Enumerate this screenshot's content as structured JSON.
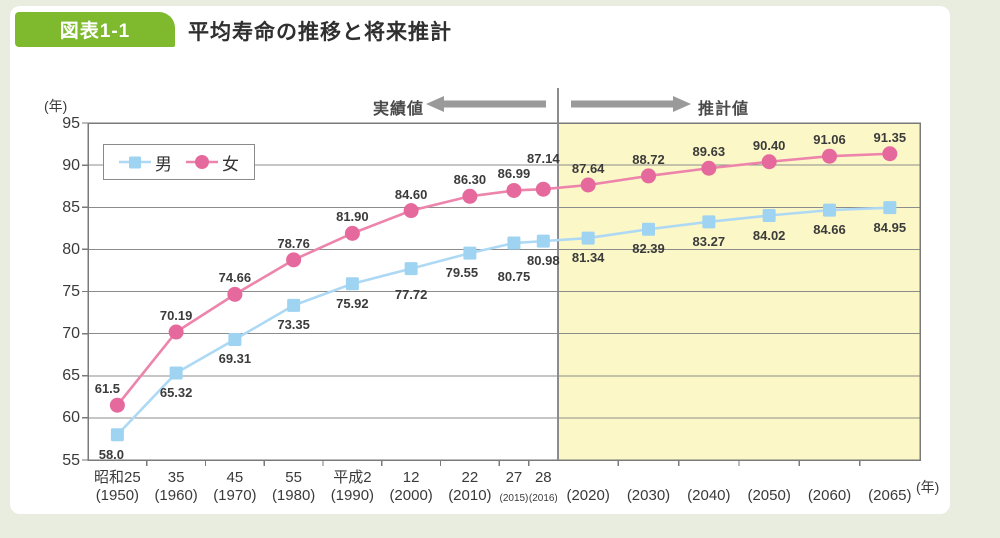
{
  "page": {
    "figure_label": "図表1-1",
    "title": "平均寿命の推移と将来推計",
    "colors": {
      "badge_green": "#7eb92e",
      "projection_bg": "#fbf7c6",
      "grid": "#8c8c8c",
      "plot_border": "#7a7a7a",
      "arrow": "#9a9a9a",
      "male": "#9fd3f2",
      "female": "#e5699c"
    }
  },
  "chart_data": {
    "type": "line",
    "title": "平均寿命の推移と将来推計",
    "ylabel_unit": "(年)",
    "xlabel_unit": "(年)",
    "ylim": [
      55,
      95
    ],
    "ytick_step": 5,
    "grid": "horizontal",
    "legend_position": "top-left",
    "actual_label": "実績値",
    "projection_label": "推計値",
    "projection_start_index": 9,
    "categories": [
      {
        "era": "昭和25",
        "year": "(1950)"
      },
      {
        "era": "35",
        "year": "(1960)"
      },
      {
        "era": "45",
        "year": "(1970)"
      },
      {
        "era": "55",
        "year": "(1980)"
      },
      {
        "era": "平成2",
        "year": "(1990)"
      },
      {
        "era": "12",
        "year": "(2000)"
      },
      {
        "era": "22",
        "year": "(2010)"
      },
      {
        "era": "27",
        "year": "(2015)",
        "narrow": true
      },
      {
        "era": "28",
        "year": "(2016)",
        "narrow": true
      },
      {
        "era": "",
        "year": "(2020)"
      },
      {
        "era": "",
        "year": "(2030)"
      },
      {
        "era": "",
        "year": "(2040)"
      },
      {
        "era": "",
        "year": "(2050)"
      },
      {
        "era": "",
        "year": "(2060)"
      },
      {
        "era": "",
        "year": "(2065)"
      }
    ],
    "series": [
      {
        "name": "男",
        "marker": "square",
        "color": "#9fd3f2",
        "line_color": "#aed9f4",
        "values": [
          58.0,
          65.32,
          69.31,
          73.35,
          75.92,
          77.72,
          79.55,
          80.75,
          80.98,
          81.34,
          82.39,
          83.27,
          84.02,
          84.66,
          84.95
        ],
        "labels": [
          "58.0",
          "65.32",
          "69.31",
          "73.35",
          "75.92",
          "77.72",
          "79.55",
          "80.75",
          "80.98",
          "81.34",
          "82.39",
          "83.27",
          "84.02",
          "84.66",
          "84.95"
        ]
      },
      {
        "name": "女",
        "marker": "circle",
        "color": "#e5699c",
        "line_color": "#ec84ab",
        "values": [
          61.5,
          70.19,
          74.66,
          78.76,
          81.9,
          84.6,
          86.3,
          86.99,
          87.14,
          87.64,
          88.72,
          89.63,
          90.4,
          91.06,
          91.35
        ],
        "labels": [
          "61.5",
          "70.19",
          "74.66",
          "78.76",
          "81.90",
          "84.60",
          "86.30",
          "86.99",
          "87.14",
          "87.64",
          "88.72",
          "89.63",
          "90.40",
          "91.06",
          "91.35"
        ]
      }
    ]
  }
}
